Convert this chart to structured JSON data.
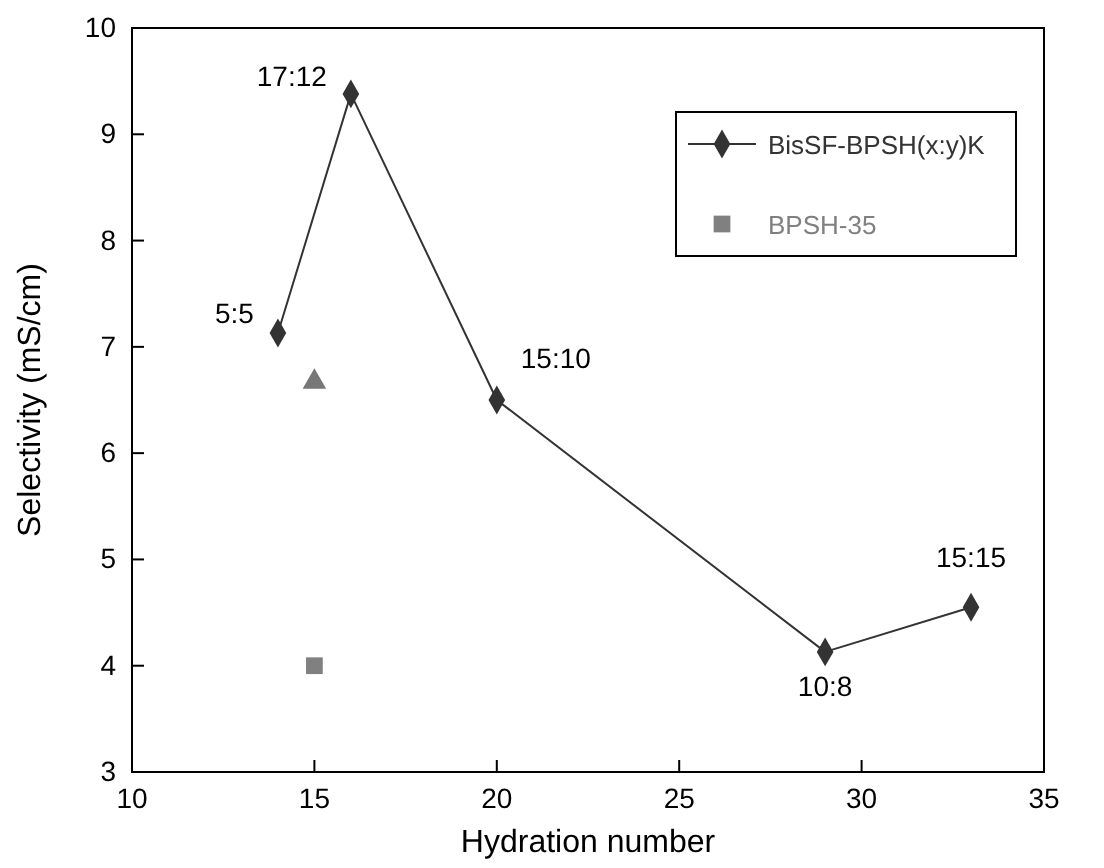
{
  "chart_data": {
    "type": "line",
    "xlabel": "Hydration number",
    "ylabel": "Selectivity (mS/cm)",
    "xlim": [
      10,
      35
    ],
    "xticks": [
      10,
      15,
      20,
      25,
      30,
      35
    ],
    "ylim": [
      3,
      10
    ],
    "yticks": [
      3,
      4,
      5,
      6,
      7,
      8,
      9,
      10
    ],
    "grid": false,
    "legend": "top right",
    "series": [
      {
        "name": "BisSF-BPSH(x:y)K",
        "marker": "diamond",
        "color": "#333333",
        "x": [
          14,
          16,
          20,
          29,
          33
        ],
        "values": [
          7.13,
          9.38,
          6.5,
          4.13,
          4.55
        ]
      },
      {
        "type": "scatter",
        "marker": "triangle",
        "color": "#777777",
        "x": [
          15
        ],
        "values": [
          6.67
        ]
      },
      {
        "name": "BPSH-35",
        "type": "scatter",
        "marker": "square",
        "color": "#808080",
        "x": [
          15
        ],
        "values": [
          4.0
        ]
      }
    ],
    "annotations": [
      {
        "text": "5:5",
        "x": 14,
        "y": 7.13
      },
      {
        "text": "17:12",
        "x": 16,
        "y": 9.38
      },
      {
        "text": "15:10",
        "x": 20,
        "y": 6.5
      },
      {
        "text": "10:8",
        "x": 29,
        "y": 4.13
      },
      {
        "text": "15:15",
        "x": 33,
        "y": 4.55
      }
    ]
  }
}
